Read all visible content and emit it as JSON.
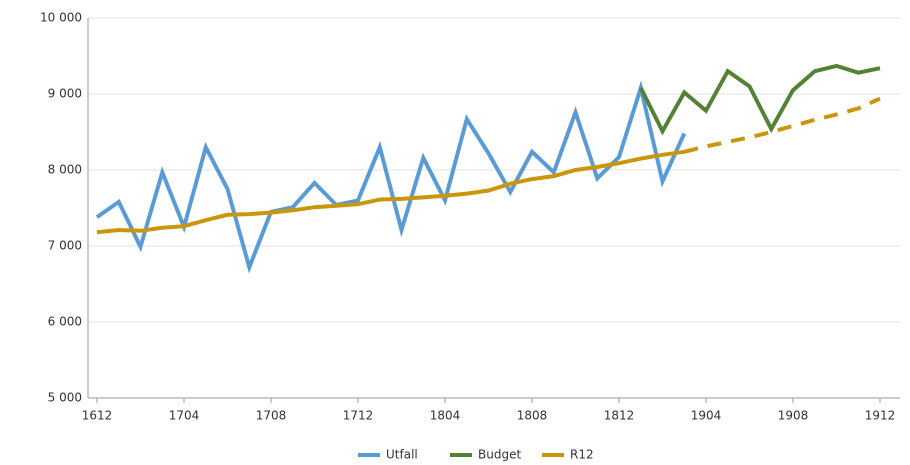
{
  "chart_data": {
    "type": "line",
    "categories": [
      "1612",
      null,
      null,
      null,
      "1704",
      null,
      null,
      null,
      "1708",
      null,
      null,
      null,
      "1712",
      null,
      null,
      null,
      "1804",
      null,
      null,
      null,
      "1808",
      null,
      null,
      null,
      "1812",
      null,
      null,
      null,
      "1904",
      null,
      null,
      null,
      "1908",
      null,
      null,
      null,
      "1912"
    ],
    "series": [
      {
        "name": "Utfall",
        "color": "#5b9bd5",
        "values": [
          7380,
          7580,
          6990,
          7970,
          7250,
          8300,
          7750,
          6720,
          7450,
          7510,
          7830,
          7540,
          7600,
          8300,
          7210,
          8160,
          7600,
          8670,
          8220,
          7710,
          8240,
          7970,
          8760,
          7890,
          8170,
          9080,
          7850,
          8480,
          null,
          null,
          null,
          null,
          null,
          null,
          null,
          null,
          null
        ]
      },
      {
        "name": "Budget",
        "color": "#548235",
        "values": [
          null,
          null,
          null,
          null,
          null,
          null,
          null,
          null,
          null,
          null,
          null,
          null,
          null,
          null,
          null,
          null,
          null,
          null,
          null,
          null,
          null,
          null,
          null,
          null,
          null,
          9080,
          8510,
          9020,
          8780,
          9300,
          9100,
          8540,
          9050,
          9300,
          9370,
          9280,
          9340
        ]
      },
      {
        "name": "R12",
        "color": "#c9960c",
        "dashed_from_index": 27,
        "values": [
          7180,
          7210,
          7200,
          7240,
          7260,
          7340,
          7410,
          7420,
          7440,
          7470,
          7510,
          7530,
          7550,
          7610,
          7620,
          7640,
          7660,
          7690,
          7730,
          7820,
          7880,
          7920,
          8000,
          8040,
          8090,
          8150,
          8200,
          8240,
          8310,
          8370,
          8430,
          8500,
          8580,
          8660,
          8730,
          8810,
          8940
        ]
      }
    ],
    "ylim": [
      5000,
      10000
    ],
    "yticks": [
      {
        "value": 5000,
        "label": "5 000"
      },
      {
        "value": 6000,
        "label": "6 000"
      },
      {
        "value": 7000,
        "label": "7 000"
      },
      {
        "value": 8000,
        "label": "8 000"
      },
      {
        "value": 9000,
        "label": "9 000"
      },
      {
        "value": 10000,
        "label": "10 000"
      }
    ],
    "grid": true,
    "legend": "bottom"
  }
}
